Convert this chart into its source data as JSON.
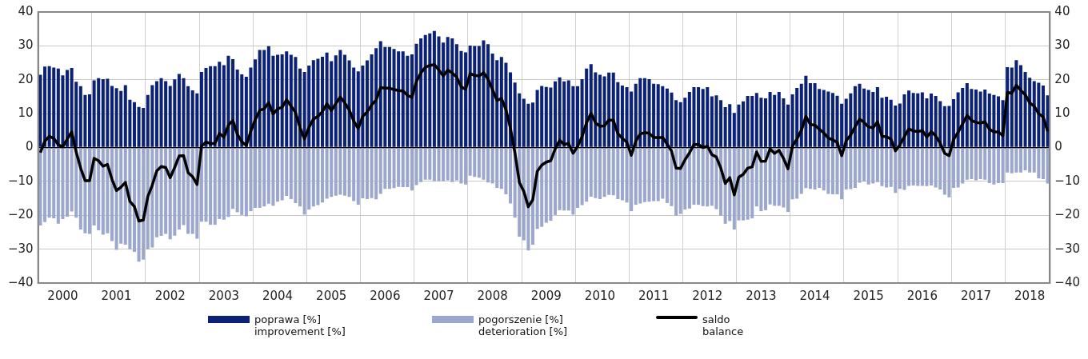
{
  "chart_data": {
    "type": "bar",
    "stacked": true,
    "grid": true,
    "legend": "bottom",
    "ylim": [
      -40,
      40
    ],
    "yticks": [
      -40,
      -30,
      -20,
      -10,
      0,
      10,
      20,
      30,
      40
    ],
    "y2lim": [
      -40,
      40
    ],
    "y2ticks": [
      -40,
      -30,
      -20,
      -10,
      0,
      10,
      20,
      30,
      40
    ],
    "categories": [
      null,
      null,
      null,
      null,
      null,
      "2000",
      null,
      null,
      null,
      null,
      null,
      null,
      null,
      null,
      null,
      null,
      null,
      "2001",
      null,
      null,
      null,
      null,
      null,
      null,
      null,
      null,
      null,
      null,
      null,
      "2002",
      null,
      null,
      null,
      null,
      null,
      null,
      null,
      null,
      null,
      null,
      null,
      "2003",
      null,
      null,
      null,
      null,
      null,
      null,
      null,
      null,
      null,
      null,
      null,
      "2004",
      null,
      null,
      null,
      null,
      null,
      null,
      null,
      null,
      null,
      null,
      null,
      "2005",
      null,
      null,
      null,
      null,
      null,
      null,
      null,
      null,
      null,
      null,
      null,
      "2006",
      null,
      null,
      null,
      null,
      null,
      null,
      null,
      null,
      null,
      null,
      null,
      "2007",
      null,
      null,
      null,
      null,
      null,
      null,
      null,
      null,
      null,
      null,
      null,
      "2008",
      null,
      null,
      null,
      null,
      null,
      null,
      null,
      null,
      null,
      null,
      null,
      "2009",
      null,
      null,
      null,
      null,
      null,
      null,
      null,
      null,
      null,
      null,
      null,
      "2010",
      null,
      null,
      null,
      null,
      null,
      null,
      null,
      null,
      null,
      null,
      null,
      "2011",
      null,
      null,
      null,
      null,
      null,
      null,
      null,
      null,
      null,
      null,
      null,
      "2012",
      null,
      null,
      null,
      null,
      null,
      null,
      null,
      null,
      null,
      null,
      null,
      "2013",
      null,
      null,
      null,
      null,
      null,
      null,
      null,
      null,
      null,
      null,
      null,
      "2014",
      null,
      null,
      null,
      null,
      null,
      null,
      null,
      null,
      null,
      null,
      null,
      "2015",
      null,
      null,
      null,
      null,
      null,
      null,
      null,
      null,
      null,
      null,
      null,
      "2016",
      null,
      null,
      null,
      null,
      null,
      null,
      null,
      null,
      null,
      null,
      null,
      "2017",
      null,
      null,
      null,
      null,
      null,
      null,
      null,
      null,
      null,
      null,
      null,
      "2018",
      null,
      null,
      null,
      null
    ],
    "series": [
      {
        "name": "poprawa [%]\nimprovement [%]",
        "color": "#0b2175",
        "values": [
          21.5,
          23.9,
          24.0,
          23.6,
          23.3,
          21.3,
          22.9,
          23.5,
          19.4,
          18.1,
          15.5,
          15.7,
          19.8,
          20.5,
          20.2,
          20.3,
          18.2,
          17.5,
          16.7,
          18.4,
          14.1,
          13.4,
          12.0,
          11.7,
          15.5,
          18.4,
          19.6,
          20.5,
          19.6,
          18.2,
          20.1,
          21.7,
          20.5,
          18.1,
          16.9,
          16.0,
          22.3,
          23.5,
          24.0,
          24.0,
          25.3,
          24.3,
          27.1,
          26.1,
          23.0,
          21.6,
          20.9,
          23.6,
          26.0,
          28.8,
          28.8,
          29.9,
          27.1,
          27.4,
          27.5,
          28.4,
          27.4,
          26.7,
          23.3,
          22.3,
          24.2,
          25.8,
          26.2,
          26.8,
          28.0,
          25.5,
          27.2,
          28.8,
          27.4,
          25.7,
          23.6,
          22.5,
          24.2,
          25.7,
          27.5,
          29.3,
          31.4,
          29.7,
          29.7,
          29.1,
          28.4,
          28.4,
          27.1,
          27.5,
          30.6,
          32.2,
          33.2,
          33.7,
          34.4,
          32.8,
          31.0,
          32.6,
          32.2,
          30.5,
          28.5,
          28.1,
          30.1,
          30.0,
          30.0,
          31.6,
          30.5,
          27.7,
          25.8,
          26.7,
          25.0,
          22.2,
          19.2,
          16.0,
          14.4,
          12.9,
          13.3,
          17.0,
          18.2,
          17.9,
          17.7,
          19.5,
          20.7,
          19.5,
          19.8,
          18.1,
          18.1,
          20.2,
          23.3,
          24.6,
          22.2,
          21.5,
          21.0,
          22.1,
          22.1,
          19.3,
          18.3,
          17.8,
          16.5,
          18.8,
          20.5,
          20.5,
          20.2,
          18.8,
          18.7,
          18.1,
          17.4,
          16.2,
          14.0,
          13.4,
          14.7,
          16.4,
          17.8,
          17.8,
          17.3,
          17.8,
          15.1,
          15.4,
          14.0,
          11.9,
          12.8,
          10.2,
          12.7,
          13.6,
          15.2,
          15.2,
          16.1,
          14.7,
          14.5,
          16.4,
          15.5,
          16.4,
          14.5,
          12.7,
          15.7,
          17.6,
          18.8,
          21.2,
          19.0,
          19.0,
          17.3,
          17.0,
          16.5,
          16.1,
          15.3,
          12.9,
          14.4,
          16.0,
          18.1,
          18.8,
          17.4,
          17.0,
          16.4,
          17.8,
          14.7,
          15.0,
          14.1,
          12.4,
          13.0,
          15.7,
          16.8,
          16.1,
          16.0,
          16.3,
          14.5,
          15.9,
          15.2,
          13.7,
          12.2,
          12.3,
          14.3,
          16.3,
          17.6,
          19.0,
          17.3,
          17.1,
          16.5,
          17.1,
          15.9,
          15.5,
          15.1,
          14.0,
          23.7,
          23.6,
          25.8,
          24.3,
          22.3,
          20.6,
          19.6,
          19.1,
          18.3,
          15.4
        ]
      },
      {
        "name": "pogorszenie [%]\ndeterioration [%]",
        "color": "#9ba7cd",
        "values": [
          -23.0,
          -22.0,
          -20.7,
          -20.9,
          -22.5,
          -21.1,
          -20.4,
          -18.9,
          -20.7,
          -24.2,
          -25.3,
          -25.5,
          -23.0,
          -24.4,
          -25.7,
          -25.3,
          -27.6,
          -30.2,
          -28.4,
          -28.7,
          -30.0,
          -30.8,
          -33.7,
          -33.1,
          -30.0,
          -29.5,
          -26.5,
          -26.1,
          -25.5,
          -27.1,
          -26.0,
          -24.2,
          -22.9,
          -25.5,
          -25.5,
          -26.9,
          -21.9,
          -21.9,
          -22.8,
          -22.8,
          -21.1,
          -21.3,
          -20.5,
          -18.1,
          -19.1,
          -19.9,
          -20.3,
          -18.8,
          -17.8,
          -17.8,
          -17.4,
          -16.6,
          -17.2,
          -16.0,
          -15.6,
          -14.3,
          -15.2,
          -16.4,
          -17.4,
          -19.8,
          -18.3,
          -17.4,
          -17.0,
          -16.2,
          -15.1,
          -14.6,
          -14.2,
          -13.9,
          -14.2,
          -14.6,
          -15.8,
          -16.9,
          -15.0,
          -15.2,
          -14.9,
          -15.3,
          -13.7,
          -12.2,
          -12.2,
          -12.0,
          -11.6,
          -11.7,
          -11.7,
          -12.7,
          -11.1,
          -10.2,
          -9.5,
          -9.5,
          -9.9,
          -9.9,
          -9.9,
          -9.7,
          -10.2,
          -9.7,
          -10.6,
          -10.9,
          -8.3,
          -8.7,
          -8.9,
          -9.5,
          -10.3,
          -10.6,
          -11.9,
          -12.2,
          -13.8,
          -16.5,
          -20.7,
          -26.3,
          -27.4,
          -30.4,
          -28.7,
          -24.0,
          -23.4,
          -22.2,
          -21.6,
          -19.9,
          -18.5,
          -18.6,
          -18.6,
          -19.8,
          -17.8,
          -17.0,
          -16.0,
          -14.5,
          -14.9,
          -15.2,
          -14.6,
          -14.0,
          -14.1,
          -15.2,
          -15.6,
          -16.2,
          -18.8,
          -16.9,
          -16.5,
          -16.1,
          -16.0,
          -15.8,
          -15.8,
          -15.1,
          -16.4,
          -17.3,
          -20.1,
          -19.6,
          -18.3,
          -18.0,
          -16.9,
          -16.9,
          -17.3,
          -17.4,
          -17.2,
          -18.2,
          -20.1,
          -22.5,
          -21.7,
          -24.2,
          -21.5,
          -21.5,
          -21.3,
          -20.9,
          -17.4,
          -18.8,
          -18.5,
          -16.8,
          -17.2,
          -17.2,
          -17.7,
          -19.0,
          -15.3,
          -15.1,
          -13.7,
          -12.0,
          -12.2,
          -12.4,
          -11.9,
          -12.7,
          -13.7,
          -13.8,
          -13.8,
          -15.3,
          -12.4,
          -12.3,
          -11.9,
          -10.4,
          -10.0,
          -10.9,
          -10.6,
          -10.2,
          -11.4,
          -11.8,
          -11.6,
          -13.4,
          -12.2,
          -12.5,
          -11.3,
          -11.2,
          -11.3,
          -11.3,
          -11.4,
          -11.2,
          -11.8,
          -12.4,
          -13.9,
          -14.7,
          -11.9,
          -11.8,
          -10.6,
          -9.5,
          -9.3,
          -9.7,
          -9.3,
          -9.5,
          -10.5,
          -10.9,
          -10.5,
          -10.5,
          -7.4,
          -7.6,
          -7.4,
          -7.4,
          -6.7,
          -7.4,
          -7.4,
          -9.1,
          -9.3,
          -10.6
        ]
      },
      {
        "type": "line",
        "name": "saldo\nbalance",
        "color": "#000000",
        "values": [
          -1.5,
          1.9,
          3.3,
          2.7,
          0.8,
          0.2,
          2.5,
          4.6,
          -1.3,
          -6.1,
          -9.8,
          -9.8,
          -3.2,
          -3.9,
          -5.5,
          -5.0,
          -9.4,
          -12.7,
          -11.7,
          -10.3,
          -15.9,
          -17.4,
          -21.7,
          -21.4,
          -14.5,
          -11.1,
          -6.9,
          -5.6,
          -5.9,
          -8.9,
          -5.9,
          -2.5,
          -2.4,
          -7.4,
          -8.6,
          -10.9,
          0.4,
          1.6,
          1.2,
          1.2,
          4.2,
          3.0,
          6.6,
          8.0,
          3.9,
          1.7,
          0.6,
          4.8,
          8.2,
          11.0,
          11.4,
          13.3,
          9.9,
          11.4,
          11.9,
          14.1,
          12.2,
          10.3,
          5.9,
          2.5,
          5.9,
          8.4,
          9.2,
          10.6,
          12.9,
          10.9,
          13.0,
          14.9,
          13.2,
          11.1,
          7.8,
          5.6,
          9.2,
          10.5,
          12.6,
          14.0,
          17.7,
          17.5,
          17.5,
          17.1,
          16.8,
          16.7,
          15.4,
          14.8,
          19.5,
          22.0,
          23.7,
          24.2,
          24.5,
          22.9,
          21.1,
          22.9,
          22.0,
          20.8,
          17.9,
          17.2,
          21.8,
          21.3,
          21.1,
          22.1,
          20.2,
          17.1,
          13.9,
          14.5,
          11.2,
          5.7,
          -1.5,
          -10.3,
          -13.0,
          -17.5,
          -15.4,
          -7.0,
          -5.2,
          -4.3,
          -3.9,
          -0.4,
          2.2,
          0.9,
          1.2,
          -1.7,
          0.3,
          3.2,
          7.3,
          10.1,
          7.3,
          6.3,
          6.4,
          8.1,
          8.0,
          4.1,
          2.7,
          1.6,
          -2.3,
          1.9,
          4.0,
          4.4,
          4.2,
          3.0,
          2.9,
          3.0,
          1.0,
          -1.1,
          -6.1,
          -6.2,
          -3.6,
          -1.6,
          0.9,
          0.9,
          0.0,
          0.4,
          -2.1,
          -2.8,
          -6.1,
          -10.6,
          -8.9,
          -14.0,
          -8.8,
          -7.9,
          -6.1,
          -5.7,
          -1.3,
          -4.1,
          -4.0,
          -0.4,
          -1.7,
          -0.8,
          -3.2,
          -6.3,
          0.4,
          2.5,
          5.1,
          9.2,
          6.8,
          6.6,
          5.4,
          4.3,
          2.8,
          2.3,
          1.5,
          -2.4,
          2.0,
          3.7,
          6.2,
          8.4,
          7.4,
          6.1,
          5.8,
          7.6,
          3.3,
          3.2,
          2.5,
          -1.0,
          0.8,
          3.2,
          5.5,
          4.9,
          4.7,
          5.0,
          3.1,
          4.7,
          3.4,
          1.3,
          -1.7,
          -2.4,
          2.4,
          4.5,
          7.0,
          9.5,
          8.0,
          7.4,
          7.2,
          7.6,
          5.4,
          4.6,
          4.6,
          3.5,
          16.3,
          16.0,
          18.4,
          16.9,
          15.6,
          13.2,
          12.2,
          10.0,
          9.0,
          4.8
        ]
      }
    ]
  }
}
